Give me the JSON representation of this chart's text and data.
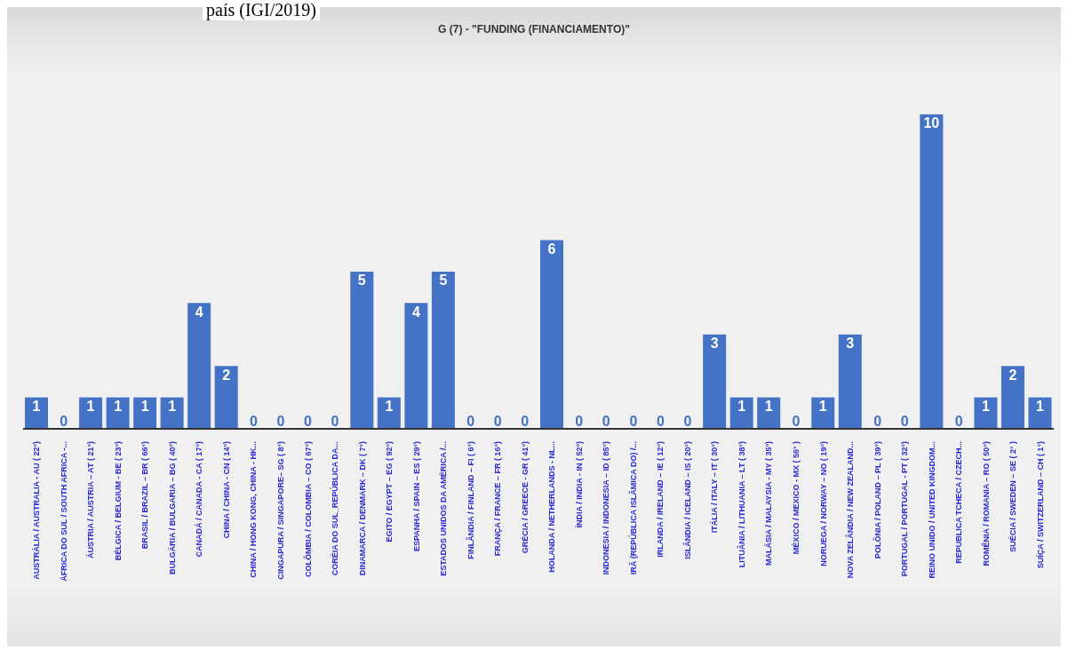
{
  "chart_data": {
    "type": "bar",
    "title": "G (7) - \"FUNDING (FINANCIAMENTO)\"",
    "annotations": [
      "país (IGI/2019)"
    ],
    "categories": [
      "AUSTRÁLIA / AUSTRALIA - AU ( 22°)",
      "ÁFRICA DO SUL / SOUTH AFRICA -...",
      "ÁUSTRIA / AUSTRIA – AT ( 21°)",
      "BÉLGICA / BELGIUM - BE ( 23°)",
      "BRASIL / BRAZIL – BR ( 66°)",
      "BULGÁRIA / BULGARIA – BG ( 40°)",
      "CANADÁ / CANADA - CA ( 17°)",
      "CHINA / CHINA - CN ( 14°)",
      "CHINA / HONG KONG, CHINA - HK...",
      "CINGAPURA / SINGAPORE– SG ( 8°)",
      "COLÔMBIA / COLOMBIA – CO ( 67°)",
      "CORÉIA DO SUL_REPÚBLICA DA...",
      "DINAMARCA / DENMARK – DK ( 7°)",
      "EGITO / EGYPT – EG ( 92°)",
      "ESPANHA / SPAIN – ES ( 29°)",
      "ESTADOS UNIDOS DA AMÉRICA /...",
      "FINLÂNDIA / FINLAND – FI ( 6°)",
      "FRANÇA / FRANCE – FR ( 16°)",
      "GRÉCIA / GREECE - GR ( 41°)",
      "HOLANDA / NETHERLANDS - NL...",
      "ÍNDIA / INDIA - IN ( 52°)",
      "INDONESIA / INDONESIA – ID ( 85°)",
      "IRÃ (REPÚBLICA ISLÂMICA DO) /...",
      "IRLANDA / IRELAND – IE ( 12°)",
      "ISLÂNDIA / ICELAND – IS ( 20°)",
      "ITÁLIA / ITALY – IT ( 30°)",
      "LITUÂNIA / LITHUANIA – LT ( 38°)",
      "MALÁSIA / MALAYSIA - MY ( 35°)",
      "MÉXICO / MEXICO - MX ( 56° )",
      "NORUEGA / NORWAY – NO ( 19°)",
      "NOVA ZELÂNDIA / NEW ZEALAND...",
      "POLÔNIA / POLAND – PL ( 39°)",
      "PORTUGAL / PORTUGAL - PT ( 32°)",
      "REINO UNIDO / UNITED KINGDOM...",
      "REPUBLICA TCHECA / CZECH...",
      "ROMÊNIA / ROMANIA – RO ( 50°)",
      "SUÉCIA / SWEDEN – SE ( 2° )",
      "SUÍÇA / SWITZERLAND – CH ( 1°)"
    ],
    "values": [
      1,
      0,
      1,
      1,
      1,
      1,
      4,
      2,
      0,
      0,
      0,
      0,
      5,
      1,
      4,
      5,
      0,
      0,
      0,
      6,
      0,
      0,
      0,
      0,
      0,
      3,
      1,
      1,
      0,
      1,
      3,
      0,
      0,
      10,
      0,
      1,
      2,
      1
    ],
    "color": "#4472c4",
    "tick_labels": "x",
    "data_labels": true
  }
}
